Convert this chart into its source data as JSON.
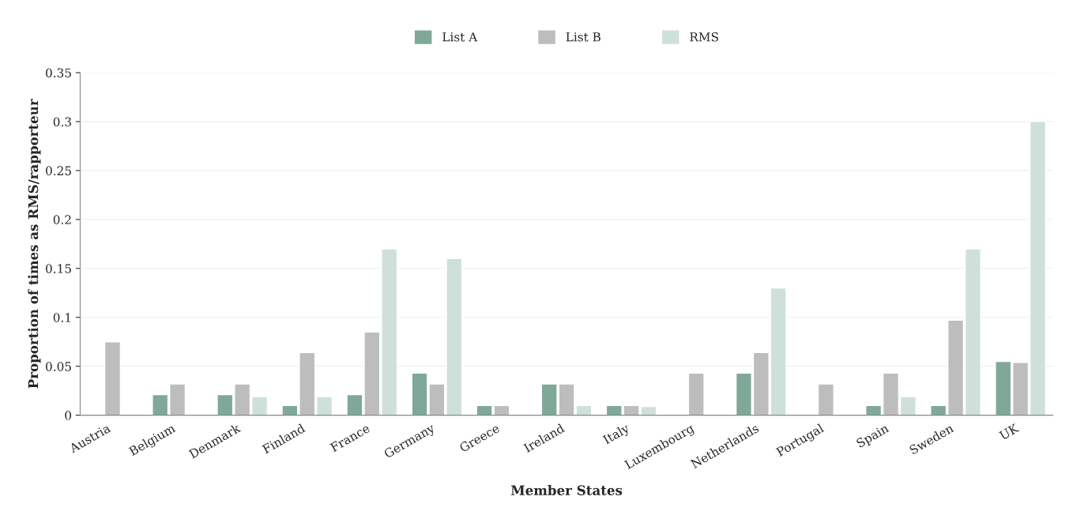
{
  "chart_data": {
    "type": "bar",
    "xlabel": "Member States",
    "ylabel": "Proportion of times as RMS/rapporteur",
    "categories": [
      "Austria",
      "Belgium",
      "Denmark",
      "Finland",
      "France",
      "Germany",
      "Greece",
      "Ireland",
      "Italy",
      "Luxembourg",
      "Netherlands",
      "Portugal",
      "Spain",
      "Sweden",
      "UK"
    ],
    "series": [
      {
        "name": "List A",
        "color": "#7fa898",
        "values": [
          null,
          0.021,
          0.021,
          0.01,
          0.021,
          0.043,
          0.01,
          0.032,
          0.01,
          null,
          0.043,
          null,
          0.01,
          0.01,
          0.055
        ]
      },
      {
        "name": "List B",
        "color": "#bdbdbd",
        "values": [
          0.075,
          0.032,
          0.032,
          0.064,
          0.085,
          0.032,
          0.01,
          0.032,
          0.01,
          0.043,
          0.064,
          0.032,
          0.043,
          0.097,
          0.054
        ]
      },
      {
        "name": "RMS",
        "color": "#cfe0da",
        "values": [
          null,
          null,
          0.019,
          0.019,
          0.17,
          0.16,
          null,
          0.01,
          0.009,
          null,
          0.13,
          null,
          0.019,
          0.17,
          0.3
        ]
      }
    ],
    "ylim": [
      0,
      0.35
    ],
    "yticks": [
      0,
      0.05,
      0.1,
      0.15,
      0.2,
      0.25,
      0.3,
      0.35
    ],
    "grid": "y",
    "legend": "top"
  }
}
